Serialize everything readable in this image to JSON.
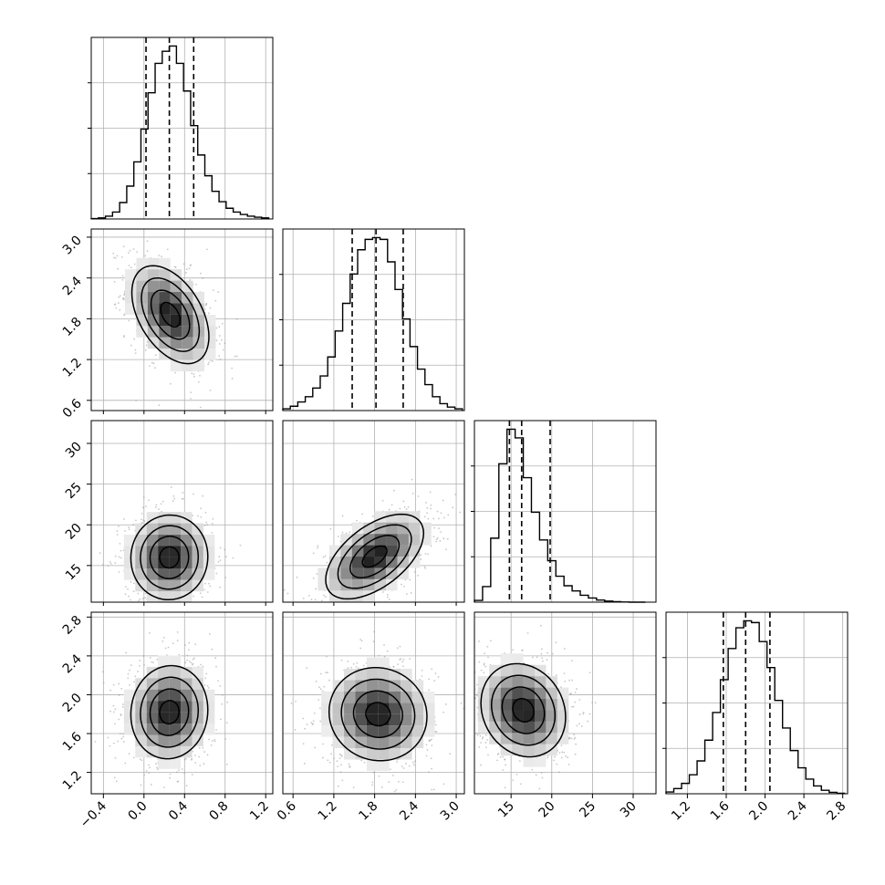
{
  "chart_data": {
    "type": "corner",
    "title": "",
    "colors": {
      "line": "#000000",
      "grid": "#b0b0b0",
      "scatter": "#9a9a9a",
      "bg": "#ffffff"
    },
    "grid": true,
    "params": [
      {
        "range": [
          -0.52,
          1.27
        ],
        "ticks": [
          -0.4,
          0.0,
          0.4,
          0.8,
          1.2
        ],
        "tick_labels": [
          "−0.4",
          "0.0",
          "0.4",
          "0.8",
          "1.2"
        ],
        "quantiles": [
          0.02,
          0.25,
          0.49
        ],
        "mean": 0.25,
        "sd": 0.19
      },
      {
        "range": [
          0.45,
          3.12
        ],
        "ticks": [
          0.6,
          1.2,
          1.8,
          2.4,
          3.0
        ],
        "tick_labels": [
          "0.6",
          "1.2",
          "1.8",
          "2.4",
          "3.0"
        ],
        "quantiles": [
          1.47,
          1.82,
          2.22
        ],
        "mean": 1.84,
        "sd": 0.36
      },
      {
        "range": [
          10.5,
          32.8
        ],
        "ticks": [
          15,
          20,
          25,
          30
        ],
        "tick_labels": [
          "15",
          "20",
          "25",
          "30"
        ],
        "quantiles": [
          14.8,
          16.3,
          19.8
        ],
        "mean": 16.6,
        "sd": 2.6
      },
      {
        "range": [
          0.98,
          2.85
        ],
        "ticks": [
          1.2,
          1.6,
          2.0,
          2.4,
          2.8
        ],
        "tick_labels": [
          "1.2",
          "1.6",
          "2.0",
          "2.4",
          "2.8"
        ],
        "quantiles": [
          1.57,
          1.8,
          2.05
        ],
        "mean": 1.81,
        "sd": 0.24
      }
    ],
    "histograms": [
      {
        "param": 0,
        "bin_edges": [
          -0.52,
          -0.45,
          -0.38,
          -0.31,
          -0.24,
          -0.17,
          -0.1,
          -0.03,
          0.04,
          0.11,
          0.18,
          0.25,
          0.32,
          0.39,
          0.46,
          0.53,
          0.6,
          0.67,
          0.74,
          0.81,
          0.88,
          0.95,
          1.02,
          1.09,
          1.16,
          1.23
        ],
        "counts": [
          2,
          6,
          16,
          40,
          95,
          190,
          330,
          520,
          730,
          900,
          970,
          1000,
          900,
          740,
          540,
          370,
          250,
          160,
          100,
          62,
          40,
          26,
          16,
          10,
          6
        ]
      },
      {
        "param": 1,
        "bin_edges": [
          0.45,
          0.56,
          0.67,
          0.78,
          0.89,
          1.0,
          1.11,
          1.22,
          1.33,
          1.44,
          1.55,
          1.66,
          1.77,
          1.88,
          1.99,
          2.1,
          2.21,
          2.32,
          2.43,
          2.54,
          2.65,
          2.76,
          2.87,
          2.98,
          3.09
        ],
        "counts": [
          10,
          25,
          50,
          80,
          130,
          200,
          310,
          460,
          620,
          790,
          930,
          990,
          1000,
          990,
          860,
          700,
          530,
          370,
          240,
          150,
          80,
          40,
          20,
          10
        ]
      },
      {
        "param": 2,
        "bin_edges": [
          10.5,
          11.5,
          12.5,
          13.5,
          14.5,
          15.5,
          16.5,
          17.5,
          18.5,
          19.5,
          20.5,
          21.5,
          22.5,
          23.5,
          24.5,
          25.5,
          26.5,
          27.5,
          28.5,
          29.5,
          30.5,
          31.5
        ],
        "counts": [
          10,
          90,
          370,
          800,
          1000,
          950,
          720,
          520,
          360,
          240,
          150,
          95,
          65,
          40,
          24,
          12,
          6,
          3,
          1,
          0,
          0
        ]
      },
      {
        "param": 3,
        "bin_edges": [
          0.98,
          1.06,
          1.14,
          1.22,
          1.3,
          1.38,
          1.46,
          1.54,
          1.62,
          1.7,
          1.78,
          1.86,
          1.94,
          2.02,
          2.1,
          2.18,
          2.26,
          2.34,
          2.42,
          2.5,
          2.58,
          2.66,
          2.74,
          2.82
        ],
        "counts": [
          10,
          30,
          60,
          110,
          190,
          310,
          470,
          660,
          840,
          960,
          1000,
          990,
          880,
          730,
          540,
          380,
          250,
          150,
          85,
          45,
          20,
          8,
          3
        ]
      }
    ],
    "joint": [
      {
        "x": 0,
        "y": 1,
        "x_center": 0.26,
        "y_center": 1.86,
        "correlation": -0.45
      },
      {
        "x": 0,
        "y": 2,
        "x_center": 0.25,
        "y_center": 16.0,
        "correlation": 0.02
      },
      {
        "x": 1,
        "y": 2,
        "x_center": 1.8,
        "y_center": 16.1,
        "correlation": 0.55
      },
      {
        "x": 0,
        "y": 3,
        "x_center": 0.25,
        "y_center": 1.82,
        "correlation": 0.05
      },
      {
        "x": 1,
        "y": 3,
        "x_center": 1.85,
        "y_center": 1.8,
        "correlation": -0.05
      },
      {
        "x": 2,
        "y": 3,
        "x_center": 16.5,
        "y_center": 1.84,
        "correlation": -0.15
      }
    ],
    "contour_sigma_levels": [
      0.5,
      1.0,
      1.5,
      2.0
    ]
  }
}
